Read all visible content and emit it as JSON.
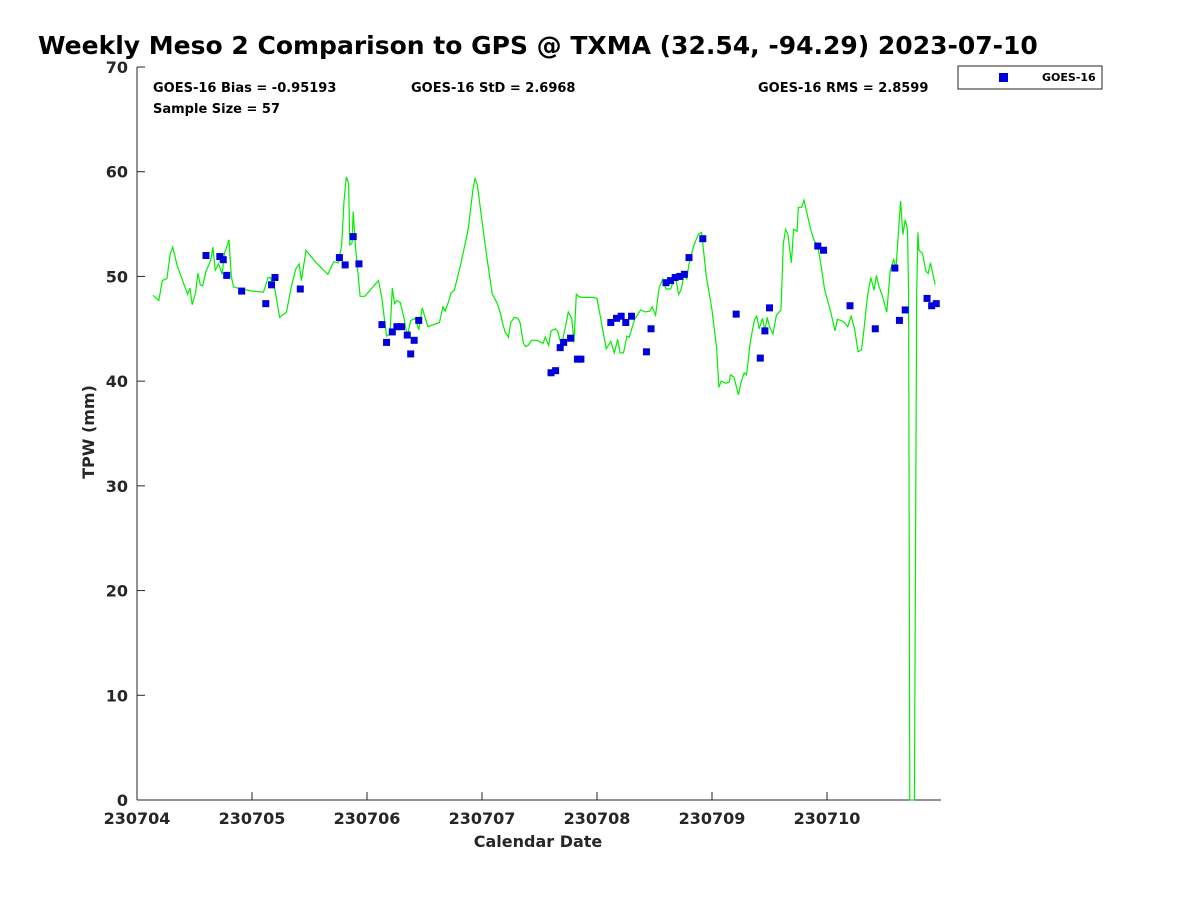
{
  "chart_data": {
    "type": "line",
    "title": "Weekly Meso 2 Comparison to GPS @ TXMA (32.54, -94.29) 2023-07-10",
    "xlabel": "Calendar Date",
    "ylabel": "TPW (mm)",
    "xlim": [
      0,
      7.0
    ],
    "ylim": [
      0,
      70
    ],
    "x_ticks": [
      0,
      1,
      2,
      3,
      4,
      5,
      6
    ],
    "x_tick_labels": [
      "230704",
      "230705",
      "230706",
      "230707",
      "230708",
      "230709",
      "230710"
    ],
    "y_ticks": [
      0,
      10,
      20,
      30,
      40,
      50,
      60,
      70
    ],
    "y_tick_labels": [
      "0",
      "10",
      "20",
      "30",
      "40",
      "50",
      "60",
      "70"
    ],
    "grid": false,
    "legend_position": "top-right",
    "stats": {
      "bias": "GOES-16 Bias = -0.95193",
      "sample": "Sample Size = 57",
      "std": "GOES-16 StD = 2.6968",
      "rms": "GOES-16 RMS = 2.8599"
    },
    "gps_line": {
      "color": "#00ee00",
      "points": [
        [
          0.14,
          48.2
        ],
        [
          0.19,
          47.7
        ],
        [
          0.22,
          49.6
        ],
        [
          0.26,
          49.8
        ],
        [
          0.29,
          52.2
        ],
        [
          0.31,
          52.8
        ],
        [
          0.35,
          51.0
        ],
        [
          0.4,
          49.5
        ],
        [
          0.44,
          48.3
        ],
        [
          0.46,
          48.9
        ],
        [
          0.48,
          47.3
        ],
        [
          0.51,
          48.5
        ],
        [
          0.53,
          50.3
        ],
        [
          0.55,
          49.2
        ],
        [
          0.57,
          49.1
        ],
        [
          0.6,
          50.5
        ],
        [
          0.64,
          51.5
        ],
        [
          0.66,
          52.8
        ],
        [
          0.68,
          50.6
        ],
        [
          0.71,
          51.2
        ],
        [
          0.74,
          50.2
        ],
        [
          0.76,
          52.2
        ],
        [
          0.78,
          52.8
        ],
        [
          0.8,
          53.5
        ],
        [
          0.82,
          50.0
        ],
        [
          0.84,
          49.0
        ],
        [
          0.87,
          48.9
        ],
        [
          1.0,
          48.6
        ],
        [
          1.1,
          48.5
        ],
        [
          1.14,
          49.9
        ],
        [
          1.16,
          49.9
        ],
        [
          1.2,
          48.7
        ],
        [
          1.24,
          46.1
        ],
        [
          1.3,
          46.6
        ],
        [
          1.34,
          48.9
        ],
        [
          1.38,
          50.7
        ],
        [
          1.41,
          51.2
        ],
        [
          1.43,
          49.6
        ],
        [
          1.47,
          52.5
        ],
        [
          1.55,
          51.4
        ],
        [
          1.66,
          50.2
        ],
        [
          1.71,
          51.4
        ],
        [
          1.75,
          51.3
        ],
        [
          1.78,
          53.0
        ],
        [
          1.8,
          57.2
        ],
        [
          1.82,
          59.5
        ],
        [
          1.84,
          58.9
        ],
        [
          1.85,
          53.0
        ],
        [
          1.87,
          53.2
        ],
        [
          1.88,
          56.2
        ],
        [
          1.9,
          52.8
        ],
        [
          1.94,
          48.1
        ],
        [
          1.98,
          48.1
        ],
        [
          2.1,
          49.6
        ],
        [
          2.13,
          47.9
        ],
        [
          2.17,
          44.3
        ],
        [
          2.2,
          44.5
        ],
        [
          2.22,
          48.9
        ],
        [
          2.24,
          47.4
        ],
        [
          2.26,
          47.7
        ],
        [
          2.29,
          47.5
        ],
        [
          2.32,
          46.1
        ],
        [
          2.35,
          44.3
        ],
        [
          2.38,
          45.8
        ],
        [
          2.42,
          46.0
        ],
        [
          2.45,
          44.9
        ],
        [
          2.48,
          47.0
        ],
        [
          2.53,
          45.2
        ],
        [
          2.63,
          45.6
        ],
        [
          2.66,
          47.1
        ],
        [
          2.68,
          46.7
        ],
        [
          2.71,
          47.6
        ],
        [
          2.73,
          48.4
        ],
        [
          2.76,
          48.7
        ],
        [
          2.82,
          51.4
        ],
        [
          2.88,
          54.5
        ],
        [
          2.92,
          58.2
        ],
        [
          2.94,
          59.4
        ],
        [
          2.96,
          58.7
        ],
        [
          2.98,
          57.0
        ],
        [
          3.0,
          55.3
        ],
        [
          3.04,
          52.0
        ],
        [
          3.09,
          48.3
        ],
        [
          3.13,
          47.5
        ],
        [
          3.16,
          46.5
        ],
        [
          3.18,
          45.5
        ],
        [
          3.2,
          44.7
        ],
        [
          3.23,
          44.2
        ],
        [
          3.25,
          45.6
        ],
        [
          3.28,
          46.1
        ],
        [
          3.31,
          46.0
        ],
        [
          3.33,
          45.6
        ],
        [
          3.36,
          43.6
        ],
        [
          3.38,
          43.3
        ],
        [
          3.4,
          43.4
        ],
        [
          3.43,
          43.9
        ],
        [
          3.48,
          43.9
        ],
        [
          3.53,
          43.6
        ],
        [
          3.55,
          44.2
        ],
        [
          3.58,
          43.4
        ],
        [
          3.6,
          44.8
        ],
        [
          3.64,
          45.0
        ],
        [
          3.66,
          44.7
        ],
        [
          3.69,
          43.4
        ],
        [
          3.72,
          44.9
        ],
        [
          3.75,
          46.6
        ],
        [
          3.78,
          46.0
        ],
        [
          3.8,
          43.7
        ],
        [
          3.82,
          48.3
        ],
        [
          3.84,
          48.1
        ],
        [
          3.87,
          48.0
        ],
        [
          3.97,
          48.0
        ],
        [
          4.0,
          47.9
        ],
        [
          4.08,
          43.1
        ],
        [
          4.12,
          43.8
        ],
        [
          4.15,
          42.7
        ],
        [
          4.18,
          44.0
        ],
        [
          4.2,
          42.7
        ],
        [
          4.23,
          42.7
        ],
        [
          4.26,
          44.3
        ],
        [
          4.28,
          44.2
        ],
        [
          4.33,
          46.0
        ],
        [
          4.35,
          46.3
        ],
        [
          4.38,
          46.8
        ],
        [
          4.42,
          46.6
        ],
        [
          4.46,
          46.7
        ],
        [
          4.48,
          47.1
        ],
        [
          4.51,
          46.3
        ],
        [
          4.54,
          48.9
        ],
        [
          4.57,
          49.7
        ],
        [
          4.6,
          48.8
        ],
        [
          4.64,
          48.8
        ],
        [
          4.67,
          49.7
        ],
        [
          4.69,
          49.5
        ],
        [
          4.71,
          48.3
        ],
        [
          4.73,
          48.7
        ],
        [
          4.76,
          50.3
        ],
        [
          4.78,
          49.7
        ],
        [
          4.8,
          51.2
        ],
        [
          4.84,
          52.9
        ],
        [
          4.88,
          54.0
        ],
        [
          4.91,
          54.2
        ],
        [
          4.95,
          50.0
        ],
        [
          5.0,
          46.8
        ],
        [
          5.04,
          43.2
        ],
        [
          5.06,
          39.4
        ],
        [
          5.08,
          40.0
        ],
        [
          5.12,
          39.8
        ],
        [
          5.15,
          39.9
        ],
        [
          5.16,
          40.6
        ],
        [
          5.19,
          40.4
        ],
        [
          5.23,
          38.7
        ],
        [
          5.25,
          39.8
        ],
        [
          5.28,
          40.8
        ],
        [
          5.3,
          40.6
        ],
        [
          5.33,
          43.5
        ],
        [
          5.35,
          44.8
        ],
        [
          5.37,
          45.9
        ],
        [
          5.39,
          46.2
        ],
        [
          5.41,
          45.0
        ],
        [
          5.44,
          46.0
        ],
        [
          5.46,
          44.8
        ],
        [
          5.48,
          46.1
        ],
        [
          5.5,
          45.2
        ],
        [
          5.53,
          44.5
        ],
        [
          5.56,
          46.3
        ],
        [
          5.6,
          46.8
        ],
        [
          5.62,
          53.1
        ],
        [
          5.64,
          54.5
        ],
        [
          5.66,
          54.0
        ],
        [
          5.69,
          51.3
        ],
        [
          5.71,
          54.5
        ],
        [
          5.74,
          54.3
        ],
        [
          5.75,
          56.6
        ],
        [
          5.78,
          56.6
        ],
        [
          5.8,
          57.3
        ],
        [
          5.83,
          55.8
        ],
        [
          5.86,
          54.4
        ],
        [
          5.89,
          53.4
        ],
        [
          5.92,
          52.9
        ],
        [
          5.95,
          50.9
        ],
        [
          5.98,
          48.7
        ],
        [
          6.03,
          46.7
        ],
        [
          6.07,
          44.8
        ],
        [
          6.09,
          45.9
        ],
        [
          6.12,
          45.8
        ],
        [
          6.15,
          45.6
        ],
        [
          6.18,
          45.2
        ],
        [
          6.21,
          46.2
        ],
        [
          6.24,
          45.0
        ],
        [
          6.27,
          42.8
        ],
        [
          6.3,
          43.0
        ],
        [
          6.32,
          44.8
        ],
        [
          6.35,
          48.0
        ],
        [
          6.38,
          49.9
        ],
        [
          6.41,
          48.7
        ],
        [
          6.43,
          50.1
        ],
        [
          6.45,
          49.1
        ],
        [
          6.48,
          48.2
        ],
        [
          6.52,
          46.6
        ],
        [
          6.55,
          50.6
        ],
        [
          6.58,
          51.6
        ],
        [
          6.6,
          50.8
        ],
        [
          6.64,
          57.2
        ],
        [
          6.66,
          54.0
        ],
        [
          6.68,
          55.4
        ],
        [
          6.7,
          54.5
        ],
        [
          6.71,
          48.4
        ],
        [
          6.72,
          0
        ],
        [
          6.76,
          0
        ],
        [
          6.78,
          48.4
        ],
        [
          6.79,
          54.2
        ],
        [
          6.8,
          52.5
        ],
        [
          6.83,
          52.2
        ],
        [
          6.86,
          50.5
        ],
        [
          6.88,
          50.3
        ],
        [
          6.9,
          51.3
        ],
        [
          6.94,
          49.2
        ]
      ]
    },
    "series": [
      {
        "name": "GOES-16",
        "color": "#0000dd",
        "marker": "square",
        "points": [
          [
            0.6,
            52.0
          ],
          [
            0.72,
            51.9
          ],
          [
            0.75,
            51.6
          ],
          [
            0.78,
            50.1
          ],
          [
            0.91,
            48.6
          ],
          [
            1.12,
            47.4
          ],
          [
            1.17,
            49.2
          ],
          [
            1.2,
            49.9
          ],
          [
            1.42,
            48.8
          ],
          [
            1.76,
            51.8
          ],
          [
            1.81,
            51.1
          ],
          [
            1.88,
            53.8
          ],
          [
            1.93,
            51.2
          ],
          [
            2.13,
            45.4
          ],
          [
            2.17,
            43.7
          ],
          [
            2.22,
            44.7
          ],
          [
            2.26,
            45.2
          ],
          [
            2.3,
            45.2
          ],
          [
            2.35,
            44.4
          ],
          [
            2.38,
            42.6
          ],
          [
            2.41,
            43.9
          ],
          [
            2.45,
            45.8
          ],
          [
            3.6,
            40.8
          ],
          [
            3.64,
            41.0
          ],
          [
            3.68,
            43.2
          ],
          [
            3.71,
            43.7
          ],
          [
            3.77,
            44.1
          ],
          [
            3.83,
            42.1
          ],
          [
            3.86,
            42.1
          ],
          [
            4.12,
            45.6
          ],
          [
            4.17,
            46.0
          ],
          [
            4.21,
            46.2
          ],
          [
            4.25,
            45.6
          ],
          [
            4.3,
            46.2
          ],
          [
            4.43,
            42.8
          ],
          [
            4.47,
            45.0
          ],
          [
            4.6,
            49.4
          ],
          [
            4.64,
            49.6
          ],
          [
            4.68,
            49.9
          ],
          [
            4.72,
            50.0
          ],
          [
            4.76,
            50.2
          ],
          [
            4.8,
            51.8
          ],
          [
            4.92,
            53.6
          ],
          [
            5.21,
            46.4
          ],
          [
            5.42,
            42.2
          ],
          [
            5.46,
            44.8
          ],
          [
            5.5,
            47.0
          ],
          [
            5.92,
            52.9
          ],
          [
            5.97,
            52.5
          ],
          [
            6.2,
            47.2
          ],
          [
            6.42,
            45.0
          ],
          [
            6.59,
            50.8
          ],
          [
            6.63,
            45.8
          ],
          [
            6.68,
            46.8
          ],
          [
            6.87,
            47.9
          ],
          [
            6.91,
            47.2
          ],
          [
            6.95,
            47.4
          ]
        ]
      }
    ]
  }
}
